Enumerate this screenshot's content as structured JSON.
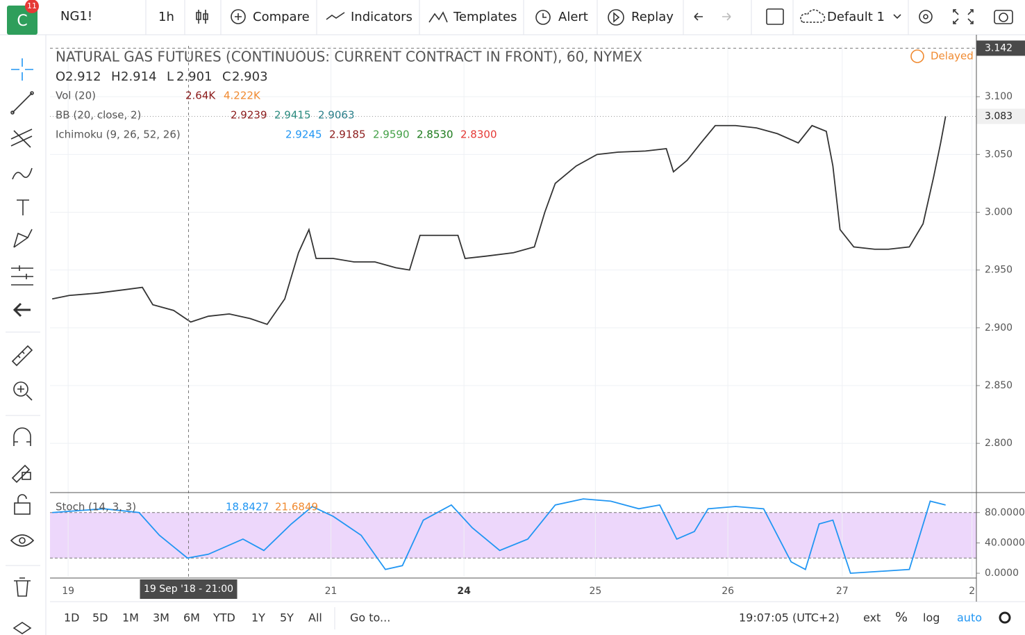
{
  "toolbar": {
    "logo": "C",
    "badge": "11",
    "symbol": "NG1!",
    "interval": "1h",
    "compare": "Compare",
    "indicators": "Indicators",
    "templates": "Templates",
    "alert": "Alert",
    "replay": "Replay",
    "layout": "Default 1"
  },
  "legend": {
    "title": "NATURAL GAS FUTURES (CONTINUOUS: CURRENT CONTRACT IN FRONT), 60, NYMEX",
    "ohlc": [
      {
        "key": "O",
        "value": "2.912"
      },
      {
        "key": "H",
        "value": "2.914"
      },
      {
        "key": "L",
        "value": "2.901"
      },
      {
        "key": "C",
        "value": "2.903"
      }
    ],
    "delayed": "Delayed",
    "studies": [
      {
        "name": "Vol (20)",
        "values": [
          "2.64K",
          "4.222K"
        ],
        "colors": [
          "#8b1a1a",
          "#f08a30"
        ]
      },
      {
        "name": "BB (20, close, 2)",
        "values": [
          "2.9239",
          "2.9415",
          "2.9063"
        ],
        "colors": [
          "#8b1a1a",
          "#2b8a7e",
          "#2b7f8a"
        ]
      },
      {
        "name": "Ichimoku (9, 26, 52, 26)",
        "values": [
          "2.9245",
          "2.9185",
          "2.9590",
          "2.8530",
          "2.8300"
        ],
        "colors": [
          "#2196f3",
          "#8b1a1a",
          "#43a047",
          "#1b7a1b",
          "#e53935"
        ]
      },
      {
        "name": "Stoch (14, 3, 3)",
        "values": [
          "18.8427",
          "21.6849"
        ],
        "colors": [
          "#2196f3",
          "#f08a30"
        ]
      }
    ]
  },
  "chart_data": [
    {
      "type": "line",
      "color": "#333333",
      "x": [
        0.4,
        3.5,
        8.6,
        13.6,
        16.8,
        18.7,
        22.5,
        25.6,
        28.8,
        32.6,
        36.4,
        39.5,
        42.7,
        45.2,
        47.1,
        48.4,
        51.5,
        55.3,
        59.1,
        62.9,
        65.4,
        67.3,
        70.5,
        74.2,
        75.5,
        79.3,
        84.3,
        88.1,
        90,
        91.9,
        95.7,
        99.5,
        103.3,
        108.3,
        112.1,
        113.4,
        115.9,
        118.4,
        121,
        124.7,
        128.5,
        132.3,
        136.1,
        138.6,
        141.2,
        142.4,
        143.7,
        146.2,
        150,
        152.5,
        156.3,
        158.8,
        160.7,
        162,
        162.9
      ],
      "values": [
        2.925,
        2.928,
        2.93,
        2.933,
        2.935,
        2.92,
        2.915,
        2.905,
        2.91,
        2.912,
        2.908,
        2.903,
        2.925,
        2.965,
        2.985,
        2.96,
        2.96,
        2.957,
        2.957,
        2.952,
        2.95,
        2.98,
        2.98,
        2.98,
        2.96,
        2.962,
        2.965,
        2.97,
        3.0,
        3.025,
        3.04,
        3.05,
        3.052,
        3.053,
        3.055,
        3.035,
        3.045,
        3.06,
        3.075,
        3.075,
        3.073,
        3.068,
        3.06,
        3.075,
        3.07,
        3.04,
        2.985,
        2.97,
        2.968,
        2.968,
        2.97,
        2.99,
        3.03,
        3.06,
        3.083
      ],
      "xlim": [
        0,
        168.5
      ],
      "xticks": [
        {
          "value": 3.3,
          "label": "19"
        },
        {
          "value": 51.1,
          "label": "21"
        },
        {
          "value": 75.3,
          "label": "24"
        },
        {
          "value": 99.2,
          "label": "25"
        },
        {
          "value": 123.3,
          "label": "26"
        },
        {
          "value": 144.1,
          "label": "27"
        },
        {
          "value": 167.7,
          "label": "2"
        }
      ],
      "ylim": [
        2.758,
        3.144
      ],
      "yticks": [
        {
          "value": 2.8,
          "label": "2.800"
        },
        {
          "value": 2.85,
          "label": "2.850"
        },
        {
          "value": 2.9,
          "label": "2.900"
        },
        {
          "value": 2.95,
          "label": "2.950"
        },
        {
          "value": 3.0,
          "label": "3.000"
        },
        {
          "value": 3.05,
          "label": "3.050"
        },
        {
          "value": 3.1,
          "label": "3.100"
        }
      ],
      "last_price": {
        "value": 3.083,
        "label": "3.083"
      },
      "crosshair": {
        "price": {
          "value": 3.142,
          "label": "3.142"
        },
        "x": 25.2,
        "label": "19 Sep '18 - 21:00"
      },
      "grid": true
    },
    {
      "type": "line",
      "color": "#2196f3",
      "x": [
        0.4,
        9.8,
        16.2,
        19.9,
        25,
        28.8,
        35.1,
        38.9,
        43.9,
        47.7,
        51.5,
        56.6,
        61,
        64.1,
        67.9,
        73,
        76.8,
        81.8,
        86.9,
        91.9,
        97,
        102,
        107.1,
        110.9,
        114,
        117.2,
        119.7,
        124.7,
        129.8,
        134.8,
        137.4,
        139.9,
        142.4,
        145.6,
        150,
        156.3,
        160.1,
        162.9
      ],
      "values": [
        80,
        85,
        80,
        50,
        20,
        25,
        45,
        30,
        65,
        88,
        75,
        50,
        5,
        10,
        70,
        90,
        60,
        30,
        45,
        90,
        98,
        95,
        85,
        90,
        45,
        55,
        85,
        88,
        85,
        15,
        5,
        65,
        70,
        0,
        2,
        5,
        95,
        90
      ],
      "band": [
        20,
        80
      ],
      "ylim": [
        -4.5,
        103.6
      ],
      "yticks": [
        {
          "value": 0,
          "label": "0.0000"
        },
        {
          "value": 40,
          "label": "40.0000"
        },
        {
          "value": 80,
          "label": "80.0000"
        }
      ]
    }
  ],
  "bottom_bar": {
    "ranges": [
      "1D",
      "5D",
      "1M",
      "3M",
      "6M",
      "YTD",
      "1Y",
      "5Y",
      "All"
    ],
    "goto": "Go to...",
    "clock": "19:07:05 (UTC+2)",
    "ext": "ext",
    "percent": "%",
    "log": "log",
    "auto": "auto"
  }
}
